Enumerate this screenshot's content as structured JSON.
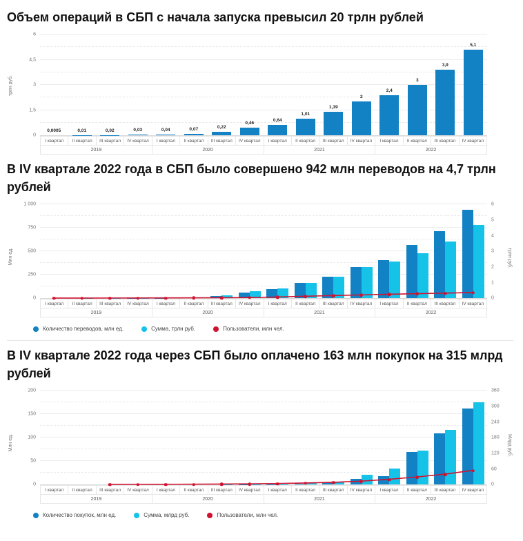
{
  "chart_data": [
    {
      "type": "bar",
      "title": "Объем операций в СБП с начала запуска превысил 20 трлн рублей",
      "left_axis": {
        "label": "трлн руб.",
        "tick_labels": [
          "0",
          "1,5",
          "3",
          "4,5",
          "6"
        ],
        "tick_values": [
          0,
          1.5,
          3,
          4.5,
          6
        ],
        "max": 6
      },
      "right_axis": null,
      "years": [
        "2019",
        "2020",
        "2021",
        "2022"
      ],
      "quarters": [
        "I квартал",
        "II квартал",
        "III квартал",
        "IV квартал"
      ],
      "grid": "major solid + minor dashed",
      "legend_position": "none",
      "show_legend": false,
      "series": [
        {
          "type": "bar",
          "axis": "left",
          "color": "#1282c4",
          "values": [
            0.0005,
            0.01,
            0.02,
            0.03,
            0.04,
            0.07,
            0.22,
            0.46,
            0.64,
            1.01,
            1.39,
            2,
            2.4,
            3,
            3.9,
            5.1
          ],
          "value_labels": [
            "0,0005",
            "0,01",
            "0,02",
            "0,03",
            "0,04",
            "0,07",
            "0,22",
            "0,46",
            "0,64",
            "1,01",
            "1,39",
            "2",
            "2,4",
            "3",
            "3,9",
            "5,1"
          ]
        }
      ]
    },
    {
      "type": "bar",
      "title": "В IV квартале 2022 года в СБП было совершено 942 млн переводов на 4,7 трлн рублей",
      "left_axis": {
        "label": "Млн ед.",
        "tick_labels": [
          "0",
          "250",
          "500",
          "750",
          "1 000"
        ],
        "tick_values": [
          0,
          250,
          500,
          750,
          1000
        ],
        "max": 1000
      },
      "right_axis": {
        "label": "трлн руб.",
        "tick_labels": [
          "0",
          "1",
          "2",
          "3",
          "4",
          "5",
          "6"
        ],
        "tick_values": [
          0,
          1,
          2,
          3,
          4,
          5,
          6
        ],
        "max": 6
      },
      "years": [
        "2019",
        "2020",
        "2021",
        "2022"
      ],
      "quarters": [
        "I квартал",
        "II квартал",
        "III квартал",
        "IV квартал"
      ],
      "grid": "major solid + minor dashed",
      "legend_position": "bottom-left",
      "show_legend": true,
      "series": [
        {
          "name": "Количество переводов, млн ед.",
          "type": "bar",
          "axis": "left",
          "color": "#1282c4",
          "values": [
            0.1,
            0.5,
            1,
            2,
            4,
            9,
            25,
            60,
            100,
            165,
            227,
            335,
            407,
            565,
            713,
            942
          ]
        },
        {
          "name": "Сумма, трлн руб.",
          "type": "bar",
          "axis": "right",
          "color": "#15c2e8",
          "values": [
            0.0005,
            0.01,
            0.02,
            0.03,
            0.04,
            0.07,
            0.21,
            0.44,
            0.63,
            1.0,
            1.38,
            1.98,
            2.35,
            2.9,
            3.65,
            4.7
          ]
        },
        {
          "name": "Пользователи, млн чел.",
          "type": "line",
          "axis": "left",
          "color": "#cf1330",
          "values": [
            0.2,
            0.5,
            1,
            1.5,
            2,
            3,
            4,
            6,
            12,
            20,
            27,
            34,
            41,
            47,
            53,
            60
          ]
        }
      ]
    },
    {
      "type": "bar",
      "title": "В IV квартале 2022 года через СБП было оплачено 163 млн покупок на 315 млрд рублей",
      "left_axis": {
        "label": "Млн ед.",
        "tick_labels": [
          "0",
          "50",
          "100",
          "150",
          "200"
        ],
        "tick_values": [
          0,
          50,
          100,
          150,
          200
        ],
        "max": 200
      },
      "right_axis": {
        "label": "Млрд руб.",
        "tick_labels": [
          "0",
          "60",
          "120",
          "180",
          "240",
          "300",
          "360"
        ],
        "tick_values": [
          0,
          60,
          120,
          180,
          240,
          300,
          360
        ],
        "max": 360
      },
      "years": [
        "2019",
        "2020",
        "2021",
        "2022"
      ],
      "quarters": [
        "I квартал",
        "II квартал",
        "III квартал",
        "IV квартал"
      ],
      "grid": "major solid + minor dashed",
      "legend_position": "bottom-left",
      "show_legend": true,
      "series": [
        {
          "name": "Количество покупок, млн ед.",
          "type": "bar",
          "axis": "left",
          "color": "#1282c4",
          "values": [
            0,
            0,
            0,
            0.05,
            0.1,
            0.2,
            0.3,
            0.5,
            1,
            2,
            5,
            12,
            18,
            70,
            110,
            163
          ]
        },
        {
          "name": "Сумма, млрд руб.",
          "type": "bar",
          "axis": "right",
          "color": "#15c2e8",
          "values": [
            0,
            0,
            0,
            0.1,
            0.2,
            0.5,
            1,
            2,
            2.5,
            6,
            13,
            39,
            61,
            131,
            210,
            315
          ]
        },
        {
          "name": "Пользователи, млн чел.",
          "type": "line",
          "axis": "left",
          "color": "#cf1330",
          "values": [
            null,
            null,
            0.1,
            0.2,
            0.3,
            0.5,
            0.8,
            1.2,
            2,
            3,
            4.5,
            7,
            11,
            16,
            22,
            30
          ]
        }
      ]
    }
  ]
}
